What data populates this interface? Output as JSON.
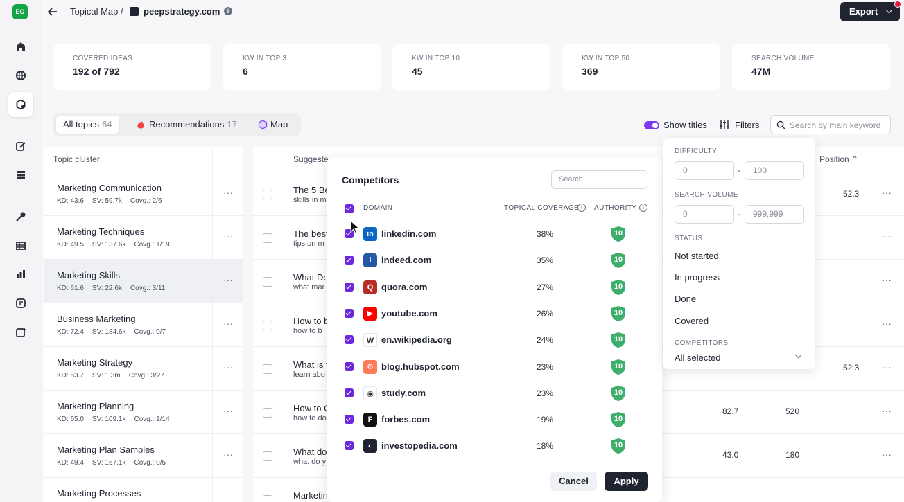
{
  "sidebar": {
    "logo": "EO"
  },
  "header": {
    "breadcrumb_title": "Topical Map /",
    "domain": "peepstrategy.com",
    "info": "i",
    "export_label": "Export"
  },
  "stats": [
    {
      "label": "COVERED IDEAS",
      "value": "192 of 792"
    },
    {
      "label": "KW IN TOP 3",
      "value": "6"
    },
    {
      "label": "KW IN TOP 10",
      "value": "45"
    },
    {
      "label": "KW IN TOP 50",
      "value": "369"
    },
    {
      "label": "SEARCH VOLUME",
      "value": "47M"
    }
  ],
  "tabs": [
    {
      "label": "All topics",
      "count": "64"
    },
    {
      "label": "Recommendations",
      "count": "17"
    },
    {
      "label": "Map",
      "count": ""
    }
  ],
  "toolbar": {
    "show_titles": "Show titles",
    "filters": "Filters",
    "search_placeholder": "Search by main keyword"
  },
  "left_table": {
    "header": "Topic cluster",
    "rows": [
      {
        "name": "Marketing Communication",
        "kd": "KD: 43.6",
        "sv": "SV: 59.7k",
        "covg": "Covg.: 2/6"
      },
      {
        "name": "Marketing Techniques",
        "kd": "KD: 49.5",
        "sv": "SV: 137.6k",
        "covg": "Covg.: 1/19"
      },
      {
        "name": "Marketing Skills",
        "kd": "KD: 61.6",
        "sv": "SV: 22.6k",
        "covg": "Covg.: 3/11"
      },
      {
        "name": "Business Marketing",
        "kd": "KD: 72.4",
        "sv": "SV: 184.6k",
        "covg": "Covg.: 0/7"
      },
      {
        "name": "Marketing Strategy",
        "kd": "KD: 53.7",
        "sv": "SV: 1.3m",
        "covg": "Covg.: 3/27"
      },
      {
        "name": "Marketing Planning",
        "kd": "KD: 65.0",
        "sv": "SV: 109.1k",
        "covg": "Covg.: 1/14"
      },
      {
        "name": "Marketing Plan Samples",
        "kd": "KD: 49.4",
        "sv": "SV: 167.1k",
        "covg": "Covg.: 0/5"
      },
      {
        "name": "Marketing Processes",
        "kd": "",
        "sv": "",
        "covg": ""
      }
    ],
    "dots": "···"
  },
  "mid_table": {
    "header": "Suggeste",
    "position_header": "Position",
    "rows": [
      {
        "title": "The 5 Be",
        "sub": "skills in m"
      },
      {
        "title": "The best",
        "sub": "tips on m"
      },
      {
        "title": "What Do",
        "sub": "what mar"
      },
      {
        "title": "How to b",
        "sub": "how to b"
      },
      {
        "title": "What is t",
        "sub": "learn abo"
      },
      {
        "title": "How to C",
        "sub": "how to do"
      },
      {
        "title": "What do",
        "sub": "what do y"
      },
      {
        "title": "Marketin",
        "sub": ""
      }
    ],
    "numbers": {
      "r1_pos": "52.3",
      "r5_pos": "52.3",
      "r6_kd": "82.7",
      "r6_sv": "520",
      "r7_kd": "43.0",
      "r7_sv": "180"
    }
  },
  "competitors": {
    "title": "Competitors",
    "search_placeholder": "Search",
    "col_domain": "DOMAIN",
    "col_coverage": "TOPICAL COVERAGE",
    "col_authority": "AUTHORITY",
    "rows": [
      {
        "domain": "linkedin.com",
        "coverage": "38%",
        "authority": "10",
        "icon": "in",
        "color": "#0a66c2"
      },
      {
        "domain": "indeed.com",
        "coverage": "35%",
        "authority": "10",
        "icon": "i",
        "color": "#2557a7"
      },
      {
        "domain": "quora.com",
        "coverage": "27%",
        "authority": "10",
        "icon": "Q",
        "color": "#b92b27"
      },
      {
        "domain": "youtube.com",
        "coverage": "26%",
        "authority": "10",
        "icon": "▶",
        "color": "#ff0000"
      },
      {
        "domain": "en.wikipedia.org",
        "coverage": "24%",
        "authority": "10",
        "icon": "W",
        "color": "#ffffff"
      },
      {
        "domain": "blog.hubspot.com",
        "coverage": "23%",
        "authority": "10",
        "icon": "⚙",
        "color": "#ff7a59"
      },
      {
        "domain": "study.com",
        "coverage": "23%",
        "authority": "10",
        "icon": "◉",
        "color": "#ffffff"
      },
      {
        "domain": "forbes.com",
        "coverage": "19%",
        "authority": "10",
        "icon": "F",
        "color": "#111111"
      },
      {
        "domain": "investopedia.com",
        "coverage": "18%",
        "authority": "10",
        "icon": "◐",
        "color": "#1f2430"
      }
    ],
    "cancel_label": "Cancel",
    "apply_label": "Apply"
  },
  "filters": {
    "difficulty_label": "DIFFICULTY",
    "difficulty_min": "0",
    "difficulty_max": "100",
    "sv_label": "SEARCH VOLUME",
    "sv_min": "0",
    "sv_max": "999,999",
    "sep": "-",
    "status_label": "STATUS",
    "status_options": [
      "Not started",
      "In progress",
      "Done",
      "Covered"
    ],
    "competitors_label": "COMPETITORS",
    "competitors_value": "All selected"
  },
  "colors": {
    "accent": "#7c3aed",
    "checkbox": "#6d28d9",
    "authority": "#3fae6a",
    "primary_button": "#1f2430"
  }
}
